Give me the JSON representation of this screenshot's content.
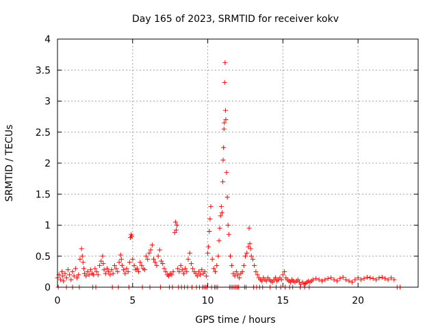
{
  "chart_data": {
    "type": "scatter",
    "title": "Day 165 of 2023, SRMTID for receiver kokv",
    "xlabel": "GPS time / hours",
    "ylabel": "SRMTID / TECUs",
    "xlim": [
      0,
      24
    ],
    "ylim": [
      0,
      4
    ],
    "xticks": [
      0,
      5,
      10,
      15,
      20
    ],
    "xtick_labels": [
      "0",
      "5",
      "10",
      "15",
      "20"
    ],
    "yticks": [
      0,
      0.5,
      1,
      1.5,
      2,
      2.5,
      3,
      3.5,
      4
    ],
    "ytick_labels": [
      "0",
      "0.5",
      "1",
      "1.5",
      "2",
      "2.5",
      "3",
      "3.5",
      "4"
    ],
    "grid": true,
    "marker": "+",
    "series": [
      {
        "name": "SRMTID",
        "color": "#ff0000",
        "x": [
          0.0,
          0.1,
          0.2,
          0.3,
          0.35,
          0.4,
          0.5,
          0.6,
          0.7,
          0.8,
          0.9,
          1.0,
          1.1,
          1.2,
          1.3,
          1.4,
          1.5,
          1.6,
          1.65,
          1.7,
          1.75,
          1.8,
          1.9,
          2.0,
          2.1,
          2.2,
          2.3,
          2.4,
          2.5,
          2.6,
          2.7,
          2.8,
          2.9,
          3.0,
          3.05,
          3.1,
          3.2,
          3.3,
          3.4,
          3.5,
          3.6,
          3.7,
          3.8,
          3.9,
          4.0,
          4.1,
          4.2,
          4.25,
          4.3,
          4.4,
          4.5,
          4.6,
          4.7,
          4.8,
          4.85,
          4.9,
          4.95,
          5.0,
          5.1,
          5.2,
          5.3,
          5.4,
          5.5,
          5.6,
          5.7,
          5.8,
          5.9,
          6.0,
          6.1,
          6.2,
          6.3,
          6.4,
          6.5,
          6.6,
          6.7,
          6.8,
          6.9,
          7.0,
          7.1,
          7.2,
          7.3,
          7.4,
          7.5,
          7.6,
          7.7,
          7.8,
          7.85,
          7.9,
          7.95,
          8.0,
          8.1,
          8.2,
          8.3,
          8.4,
          8.5,
          8.6,
          8.7,
          8.8,
          8.9,
          9.0,
          9.1,
          9.2,
          9.3,
          9.4,
          9.5,
          9.6,
          9.7,
          9.8,
          9.9,
          10.0,
          10.05,
          10.1,
          10.15,
          10.2,
          10.3,
          10.4,
          10.5,
          10.6,
          10.7,
          10.75,
          10.8,
          10.85,
          10.9,
          10.95,
          11.0,
          11.02,
          11.05,
          11.08,
          11.1,
          11.12,
          11.15,
          11.18,
          11.2,
          11.25,
          11.3,
          11.35,
          11.4,
          11.5,
          11.6,
          11.7,
          11.8,
          11.9,
          12.0,
          12.1,
          12.2,
          12.3,
          12.4,
          12.5,
          12.6,
          12.7,
          12.75,
          12.8,
          12.85,
          12.9,
          13.0,
          13.1,
          13.2,
          13.3,
          13.4,
          13.5,
          13.6,
          13.7,
          13.8,
          13.9,
          14.0,
          14.1,
          14.2,
          14.3,
          14.4,
          14.5,
          14.6,
          14.7,
          14.8,
          14.9,
          15.0,
          15.1,
          15.2,
          15.3,
          15.4,
          15.5,
          15.6,
          15.7,
          15.8,
          15.9,
          16.0,
          16.1,
          16.2,
          16.3,
          16.4,
          16.5,
          16.6,
          16.7,
          16.8,
          16.9,
          17.0,
          17.2,
          17.4,
          17.6,
          17.8,
          18.0,
          18.2,
          18.4,
          18.6,
          18.8,
          19.0,
          19.2,
          19.4,
          19.6,
          19.8,
          20.0,
          20.2,
          20.4,
          20.6,
          20.8,
          21.0,
          21.2,
          21.4,
          21.6,
          21.8,
          22.0,
          22.2,
          22.4,
          22.6,
          22.8,
          0.05,
          0.6,
          1.0,
          1.45,
          2.35,
          2.55,
          3.65,
          4.05,
          4.75,
          5.65,
          6.15,
          6.85,
          7.45,
          7.65,
          8.05,
          8.25,
          8.45,
          8.65,
          8.95,
          9.25,
          9.45,
          9.65,
          9.75,
          9.85,
          9.95,
          10.25,
          10.45,
          10.55,
          10.65,
          11.45,
          11.55,
          11.65,
          11.75,
          11.85,
          11.95,
          12.05,
          12.45,
          12.55,
          13.05,
          13.25,
          13.45,
          13.65,
          14.15,
          14.55,
          14.85,
          15.15,
          15.45,
          15.65,
          16.15,
          16.45,
          16.75
        ],
        "y": [
          0.15,
          0.2,
          0.12,
          0.25,
          0.18,
          0.1,
          0.22,
          0.15,
          0.28,
          0.2,
          0.12,
          0.25,
          0.18,
          0.3,
          0.15,
          0.2,
          0.45,
          0.62,
          0.5,
          0.4,
          0.3,
          0.22,
          0.18,
          0.25,
          0.2,
          0.28,
          0.22,
          0.2,
          0.3,
          0.25,
          0.2,
          0.35,
          0.42,
          0.5,
          0.38,
          0.28,
          0.22,
          0.3,
          0.25,
          0.2,
          0.28,
          0.22,
          0.35,
          0.3,
          0.25,
          0.4,
          0.52,
          0.45,
          0.35,
          0.28,
          0.22,
          0.3,
          0.25,
          0.4,
          0.8,
          0.85,
          0.82,
          0.45,
          0.35,
          0.28,
          0.3,
          0.25,
          0.4,
          0.35,
          0.3,
          0.28,
          0.5,
          0.45,
          0.55,
          0.6,
          0.68,
          0.45,
          0.4,
          0.35,
          0.5,
          0.6,
          0.42,
          0.38,
          0.3,
          0.25,
          0.2,
          0.18,
          0.22,
          0.2,
          0.25,
          0.88,
          1.05,
          0.92,
          1.0,
          0.3,
          0.25,
          0.35,
          0.28,
          0.22,
          0.3,
          0.25,
          0.45,
          0.55,
          0.38,
          0.3,
          0.25,
          0.22,
          0.18,
          0.25,
          0.2,
          0.28,
          0.22,
          0.25,
          0.18,
          0.55,
          0.65,
          0.9,
          1.1,
          1.3,
          0.45,
          0.3,
          0.25,
          0.35,
          0.5,
          0.75,
          0.95,
          1.15,
          1.3,
          1.2,
          1.7,
          2.05,
          2.25,
          2.55,
          2.65,
          3.3,
          3.62,
          2.85,
          2.7,
          1.85,
          1.45,
          1.0,
          0.85,
          0.5,
          0.35,
          0.22,
          0.18,
          0.25,
          0.2,
          0.15,
          0.22,
          0.25,
          0.35,
          0.5,
          0.55,
          0.65,
          0.95,
          0.7,
          0.62,
          0.5,
          0.45,
          0.35,
          0.25,
          0.2,
          0.15,
          0.12,
          0.1,
          0.15,
          0.12,
          0.1,
          0.15,
          0.12,
          0.1,
          0.08,
          0.12,
          0.15,
          0.1,
          0.12,
          0.15,
          0.12,
          0.2,
          0.25,
          0.15,
          0.12,
          0.1,
          0.08,
          0.12,
          0.1,
          0.08,
          0.1,
          0.12,
          0.08,
          0.05,
          0.08,
          0.05,
          0.06,
          0.08,
          0.1,
          0.08,
          0.1,
          0.12,
          0.14,
          0.12,
          0.1,
          0.12,
          0.14,
          0.15,
          0.12,
          0.1,
          0.14,
          0.16,
          0.12,
          0.1,
          0.08,
          0.12,
          0.15,
          0.12,
          0.14,
          0.16,
          0.15,
          0.14,
          0.12,
          0.15,
          0.16,
          0.14,
          0.12,
          0.15,
          0.12,
          0.0,
          0.0,
          0.0,
          0.0,
          0.0,
          0.0,
          0.0,
          0.0,
          0.0,
          0.0,
          0.0,
          0.0,
          0.0,
          0.0,
          0.0,
          0.0,
          0.0,
          0.0,
          0.0,
          0.0,
          0.0,
          0.0,
          0.0,
          0.0,
          0.0,
          0.0,
          0.0,
          0.0,
          0.0,
          0.0,
          0.0,
          0.0,
          0.0,
          0.0,
          0.0,
          0.0,
          0.0,
          0.0,
          0.0,
          0.0,
          0.0,
          0.0,
          0.0,
          0.0,
          0.0,
          0.0,
          0.0,
          0.0,
          0.0,
          0.0,
          0.0,
          0.0,
          0.0
        ]
      }
    ]
  }
}
